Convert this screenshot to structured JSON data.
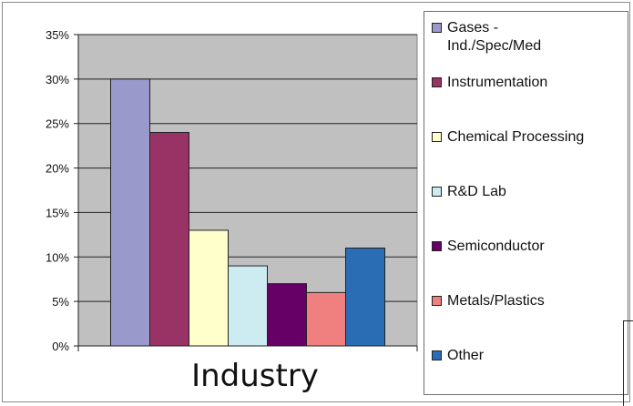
{
  "chart_data": {
    "type": "bar",
    "title": "",
    "xlabel": "Industry",
    "ylabel": "",
    "ylim": [
      0,
      35
    ],
    "yticks": [
      "0%",
      "5%",
      "10%",
      "15%",
      "20%",
      "25%",
      "30%",
      "35%"
    ],
    "grid": true,
    "legend_position": "right",
    "plot_background": "#c0c0c0",
    "categories": [
      "Gases - Ind./Spec/Med",
      "Instrumentation",
      "Chemical Processing",
      "R&D Lab",
      "Semiconductor",
      "Metals/Plastics",
      "Other"
    ],
    "values": [
      30,
      24,
      13,
      9,
      7,
      6,
      11
    ],
    "colors": [
      "#9999cc",
      "#993366",
      "#ffffcc",
      "#ccecf2",
      "#660066",
      "#f08080",
      "#2a6db5"
    ]
  }
}
